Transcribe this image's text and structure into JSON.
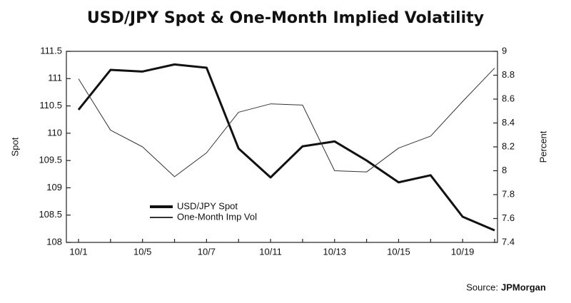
{
  "chart_data": {
    "type": "line",
    "title": "USD/JPY Spot & One-Month Implied Volatility",
    "y_label": "Spot",
    "y2_label": "Percent",
    "source_label": "Source:",
    "source_name": "JPMorgan",
    "categories": [
      "10/1",
      null,
      "10/5",
      null,
      "10/7",
      null,
      "10/11",
      null,
      "10/13",
      null,
      "10/15",
      null,
      "10/19",
      null
    ],
    "series": [
      {
        "name": "USD/JPY Spot",
        "color": "#111111",
        "width": 3,
        "axis": "y",
        "values": [
          110.43,
          111.16,
          111.13,
          111.26,
          111.2,
          109.72,
          109.19,
          109.76,
          109.85,
          109.5,
          109.1,
          109.23,
          108.47,
          108.22
        ]
      },
      {
        "name": "One-Month Imp Vol",
        "color": "#333333",
        "width": 1,
        "axis": "y2",
        "values": [
          8.77,
          8.34,
          8.2,
          7.95,
          8.15,
          8.49,
          8.56,
          8.55,
          8.0,
          7.99,
          8.19,
          8.29,
          8.58,
          8.86
        ]
      }
    ],
    "ylim": [
      108,
      111.5
    ],
    "yticks": [
      108,
      108.5,
      109,
      109.5,
      110,
      110.5,
      111,
      111.5
    ],
    "y2lim": [
      7.4,
      9
    ],
    "y2ticks": [
      7.4,
      7.6,
      7.8,
      8,
      8.2,
      8.4,
      8.6,
      8.8,
      9
    ],
    "grid": false
  }
}
